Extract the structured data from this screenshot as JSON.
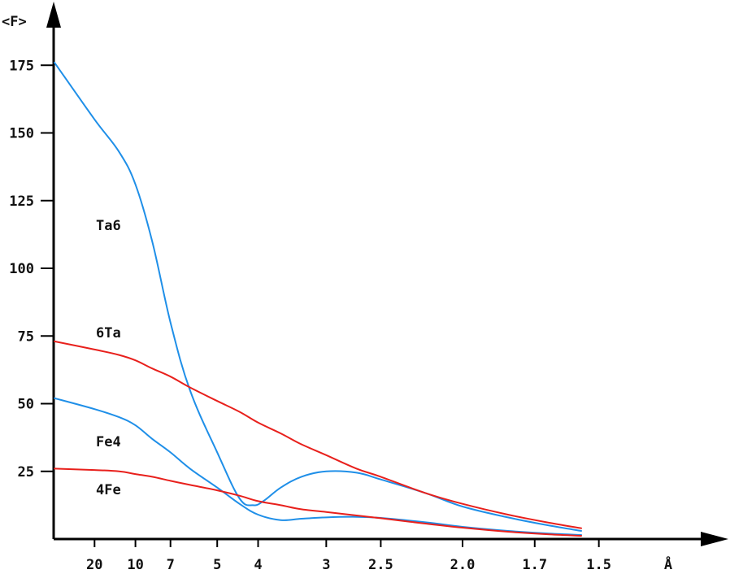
{
  "chart_data": {
    "type": "line",
    "ylabel": "<F>",
    "xlabel": "Å",
    "ylim": [
      0,
      190
    ],
    "grid": false,
    "x_scale": "reciprocal resolution (1/d)",
    "x_tick_labels": [
      "20",
      "10",
      "7",
      "5",
      "4",
      "3",
      "2.5",
      "2.0",
      "1.7",
      "1.5"
    ],
    "y_tick_labels": [
      "25",
      "50",
      "75",
      "100",
      "125",
      "150",
      "175"
    ],
    "y_ticks": [
      25,
      50,
      75,
      100,
      125,
      150,
      175
    ],
    "series": [
      {
        "name": "Ta6",
        "color": "#1f8fe8",
        "x": [
          1000,
          20,
          12.5,
          10,
          8.3,
          7,
          6,
          5,
          4.4,
          4.1,
          3.9,
          3.6,
          3.3,
          3.0,
          2.7,
          2.5,
          2.2,
          2.0,
          1.8,
          1.65,
          1.55
        ],
        "y": [
          176,
          155,
          143,
          131,
          110,
          80,
          55,
          32,
          15,
          12.5,
          14,
          19,
          23,
          25,
          24.5,
          22,
          17,
          12,
          8,
          5,
          3
        ]
      },
      {
        "name": "6Ta",
        "color": "#e8201c",
        "x": [
          1000,
          20,
          12.5,
          10,
          8.3,
          7,
          6,
          5,
          4.4,
          4.0,
          3.6,
          3.3,
          3.0,
          2.7,
          2.5,
          2.2,
          2.0,
          1.8,
          1.65,
          1.55
        ],
        "y": [
          73,
          70,
          68,
          66,
          63,
          60,
          56,
          51,
          47,
          43,
          39,
          35,
          31,
          26,
          23,
          17,
          13,
          9,
          6,
          4
        ]
      },
      {
        "name": "Fe4",
        "color": "#1f8fe8",
        "x": [
          1000,
          20,
          12.5,
          10,
          8.3,
          7,
          6,
          5,
          4.4,
          4.0,
          3.6,
          3.3,
          3.0,
          2.7,
          2.5,
          2.2,
          2.0,
          1.8,
          1.65,
          1.55
        ],
        "y": [
          52,
          48,
          45,
          42,
          37,
          32,
          26,
          19,
          13,
          9,
          7,
          7.5,
          8,
          8.2,
          7.8,
          6.2,
          4.5,
          3,
          2,
          1.5
        ]
      },
      {
        "name": "4Fe",
        "color": "#e8201c",
        "x": [
          1000,
          20,
          12.5,
          10,
          8.3,
          7,
          6,
          5,
          4.4,
          4.0,
          3.6,
          3.3,
          3.0,
          2.7,
          2.5,
          2.2,
          2.0,
          1.8,
          1.65,
          1.55
        ],
        "y": [
          26,
          25.5,
          25,
          24,
          23,
          21.5,
          20,
          18,
          16,
          14,
          12.5,
          11,
          10,
          8.7,
          7.7,
          5.7,
          4.2,
          2.7,
          1.7,
          1.2
        ]
      }
    ]
  }
}
